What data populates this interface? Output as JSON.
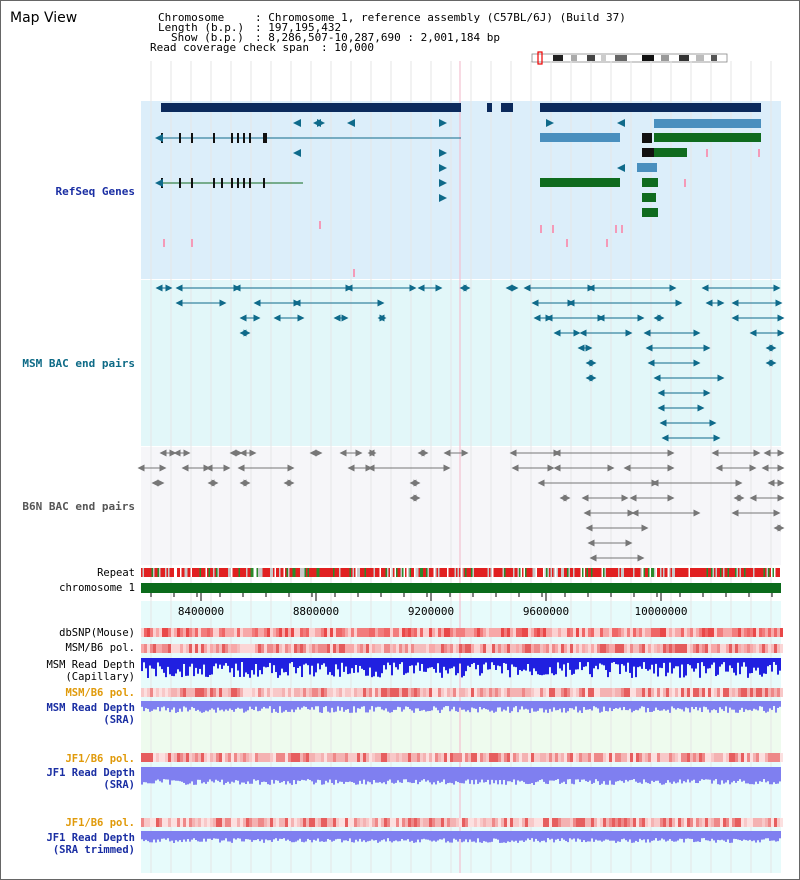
{
  "view": {
    "title": "Map View",
    "header_lines": [
      {
        "key": "Chromosome",
        "value": "Chromosome 1, reference assembly (C57BL/6J) (Build 37)"
      },
      {
        "key": "Length (b.p.)",
        "value": "197,195,432"
      },
      {
        "key": "Show (b.p.)",
        "value": "8,286,507-10,287,690 : 2,001,184 bp"
      },
      {
        "key": "Read coverage check span",
        "value": "10,000"
      }
    ]
  },
  "tracks": {
    "refseq_label": "RefSeq Genes",
    "msm_bac_label": "MSM BAC end pairs",
    "b6n_bac_label": "B6N BAC end pairs",
    "repeat_label": "Repeat",
    "chromosome_label": "chromosome 1",
    "axis_ticks": [
      "8400000",
      "8800000",
      "9200000",
      "9600000",
      "10000000"
    ],
    "dbsnp_label": "dbSNP(Mouse)",
    "msm_b6_pol_label_1": "MSM/B6 pol.",
    "msm_depth_cap_label_1": "MSM Read Depth",
    "msm_depth_cap_label_2": "(Capillary)",
    "msm_b6_pol_label_2": "MSM/B6 pol.",
    "msm_depth_sra_label_1": "MSM Read Depth",
    "msm_depth_sra_label_2": "(SRA)",
    "jf1_pol_label_1": "JF1/B6 pol.",
    "jf1_depth_label_1": "JF1 Read Depth",
    "jf1_depth_label_2": "(SRA)",
    "jf1_pol_label_2": "JF1/B6 pol.",
    "jf1_trim_label_1": "JF1 Read Depth",
    "jf1_trim_label_2": "(SRA trimmed)"
  },
  "colors": {
    "refseq_bg": "#dceefa",
    "bac_bg": "#e2f7f9",
    "b6n_bg": "#f6f6f9",
    "gene_navy": "#0b2a5c",
    "gene_blue": "#4a8fbe",
    "gene_green": "#0f6b1e",
    "bac_teal": "#0f6a8a",
    "bac_gray": "#777777",
    "label_blue": "#1a2ea3",
    "label_teal": "#0d6a86",
    "label_orange": "#e09a0a",
    "depth_blue": "#2020e0",
    "depth_light": "#7f7ff0"
  }
}
